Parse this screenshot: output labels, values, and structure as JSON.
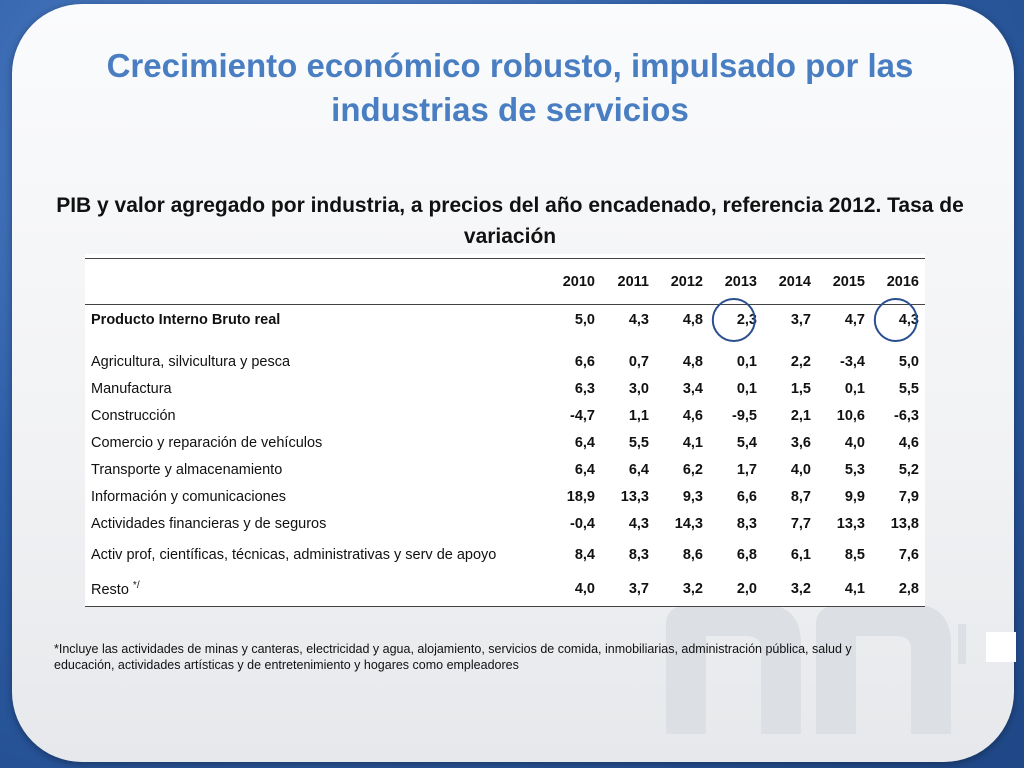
{
  "slide": {
    "title": "Crecimiento económico robusto, impulsado por las industrias de servicios",
    "subtitle": "PIB y valor agregado por industria, a precios del año encadenado, referencia 2012. Tasa de variación"
  },
  "table": {
    "years": [
      "2010",
      "2011",
      "2012",
      "2013",
      "2014",
      "2015",
      "2016"
    ],
    "gdp": {
      "label": "Producto Interno Bruto real",
      "values": [
        "5,0",
        "4,3",
        "4,8",
        "2,3",
        "3,7",
        "4,7",
        "4,3"
      ]
    },
    "rows": [
      {
        "label": "Agricultura, silvicultura y pesca",
        "values": [
          "6,6",
          "0,7",
          "4,8",
          "0,1",
          "2,2",
          "-3,4",
          "5,0"
        ]
      },
      {
        "label": "Manufactura",
        "values": [
          "6,3",
          "3,0",
          "3,4",
          "0,1",
          "1,5",
          "0,1",
          "5,5"
        ]
      },
      {
        "label": "Construcción",
        "values": [
          "-4,7",
          "1,1",
          "4,6",
          "-9,5",
          "2,1",
          "10,6",
          "-6,3"
        ]
      },
      {
        "label": "Comercio y reparación de vehículos",
        "values": [
          "6,4",
          "5,5",
          "4,1",
          "5,4",
          "3,6",
          "4,0",
          "4,6"
        ]
      },
      {
        "label": "Transporte y almacenamiento",
        "values": [
          "6,4",
          "6,4",
          "6,2",
          "1,7",
          "4,0",
          "5,3",
          "5,2"
        ]
      },
      {
        "label": "Información y comunicaciones",
        "values": [
          "18,9",
          "13,3",
          "9,3",
          "6,6",
          "8,7",
          "9,9",
          "7,9"
        ]
      },
      {
        "label": "Actividades financieras y de seguros",
        "values": [
          "-0,4",
          "4,3",
          "14,3",
          "8,3",
          "7,7",
          "13,3",
          "13,8"
        ]
      },
      {
        "label": "Activ prof, científicas, técnicas, administrativas y serv de apoyo",
        "values": [
          "8,4",
          "8,3",
          "8,6",
          "6,8",
          "6,1",
          "8,5",
          "7,6"
        ]
      }
    ],
    "resto": {
      "label": "Resto",
      "marker": "*/",
      "values": [
        "4,0",
        "3,7",
        "3,2",
        "2,0",
        "3,2",
        "4,1",
        "2,8"
      ]
    }
  },
  "footnote": "*Incluye las actividades de minas y canteras, electricidad y agua, alojamiento, servicios de comida, inmobiliarias, administración pública, salud y educación, actividades artísticas y de entretenimiento  y hogares como empleadores",
  "colors": {
    "title": "#4a7ec2",
    "circle": "#2a4f8f",
    "background": "#3d6fb6"
  }
}
